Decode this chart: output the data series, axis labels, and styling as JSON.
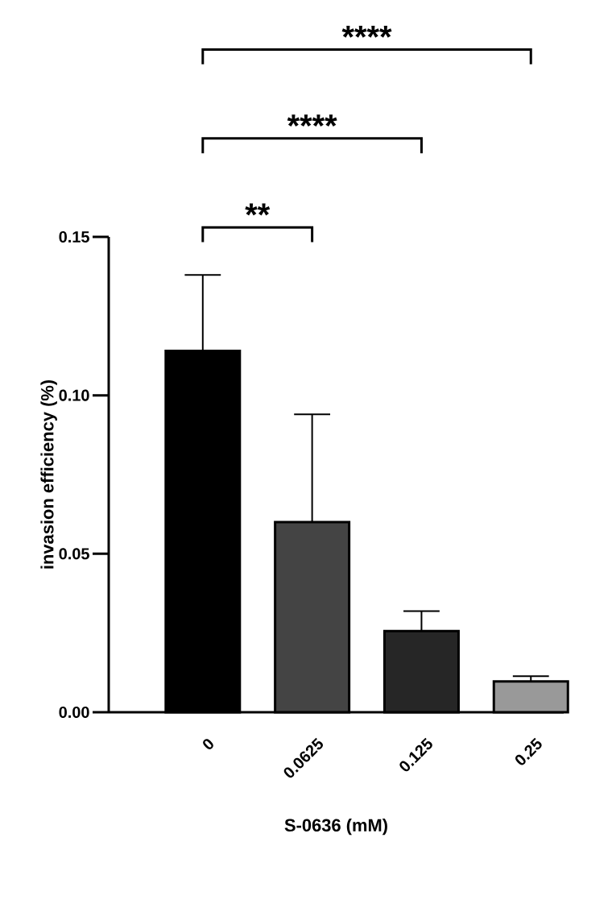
{
  "chart_data": {
    "type": "bar",
    "xlabel": "S-0636 (mM)",
    "ylabel": "invasion efficiency (%)",
    "categories": [
      "0",
      "0.0625",
      "0.125",
      "0.25"
    ],
    "values": [
      0.114,
      0.06,
      0.0256,
      0.0097
    ],
    "colors": [
      "#000000",
      "#444444",
      "#262626",
      "#999999"
    ],
    "errors": [
      [
        0.114,
        0.138
      ],
      [
        0.06,
        0.094
      ],
      [
        0.0256,
        0.0319
      ],
      [
        0.0097,
        0.0114
      ]
    ],
    "ylim": [
      0,
      0.15
    ],
    "yticks": [
      {
        "value": 0,
        "label": "0.00"
      },
      {
        "value": 0.05,
        "label": "0.05"
      },
      {
        "value": 0.1,
        "label": "0.10"
      },
      {
        "value": 0.15,
        "label": "0.15"
      }
    ],
    "annotations": [
      "**",
      "****",
      "****"
    ],
    "grid": false
  }
}
